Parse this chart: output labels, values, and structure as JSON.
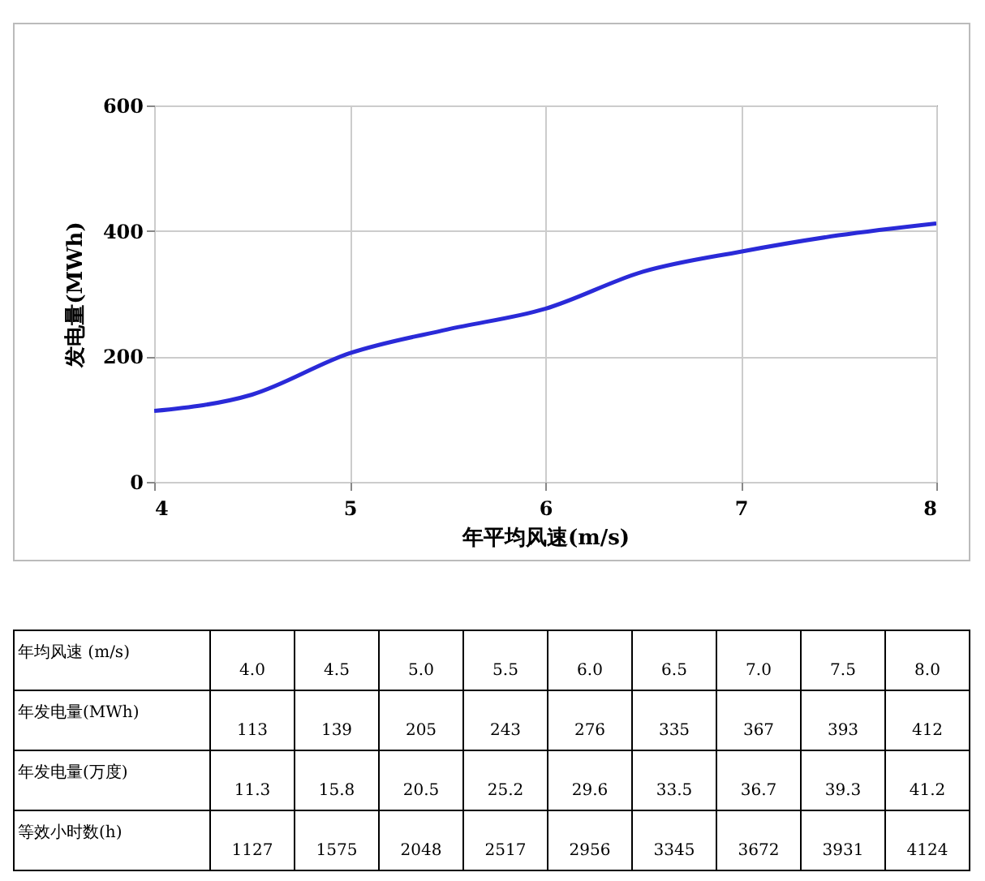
{
  "chart_data": {
    "type": "line",
    "xlabel": "年平均风速(m/s)",
    "ylabel": "发电量(MWh)",
    "x": [
      4,
      4.5,
      5,
      5.5,
      6,
      6.5,
      7,
      7.5,
      8
    ],
    "series": [
      {
        "color": "#2a2ad8",
        "values": [
          113,
          139,
          205,
          243,
          276,
          335,
          367,
          393,
          412
        ]
      }
    ],
    "xlim": [
      4,
      8
    ],
    "xticks": [
      4,
      5,
      6,
      7,
      8
    ],
    "ylim": [
      0,
      600
    ],
    "yticks": [
      0,
      200,
      400,
      600
    ],
    "grid": true,
    "marker": "none",
    "annotations": [
      "年均风速 (m/s)",
      "4.0",
      "4.5",
      "5.0",
      "5.5",
      "6.0",
      "6.5",
      "7.0",
      "7.5",
      "8.0",
      "年发电量(MWh)",
      "113",
      "139",
      "205",
      "243",
      "276",
      "335",
      "367",
      "393",
      "412",
      "年发电量(万度)",
      "11.3",
      "15.8",
      "20.5",
      "25.2",
      "29.6",
      "33.5",
      "36.7",
      "39.3",
      "41.2",
      "等效小时数(h)",
      "1127",
      "1575",
      "2048",
      "2517",
      "2956",
      "3345",
      "3672",
      "3931",
      "4124"
    ]
  }
}
